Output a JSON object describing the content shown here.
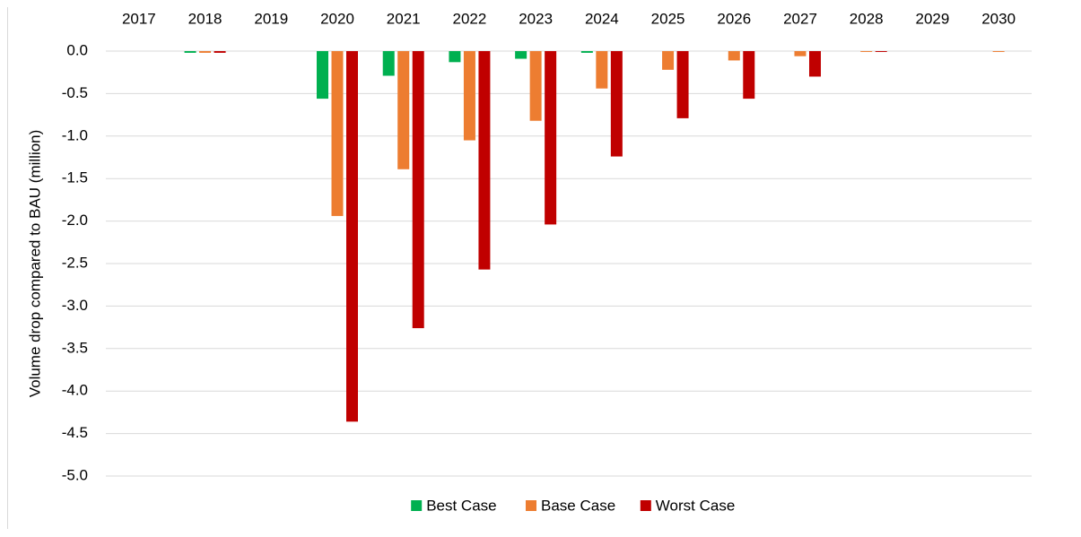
{
  "chart_data": {
    "type": "bar",
    "y_label": "Volume  drop compared to BAU (million)",
    "categories": [
      "2017",
      "2018",
      "2019",
      "2020",
      "2021",
      "2022",
      "2023",
      "2024",
      "2025",
      "2026",
      "2027",
      "2028",
      "2029",
      "2030"
    ],
    "series": [
      {
        "name": "Best Case",
        "color": "#00b050",
        "values": [
          0,
          -0.02,
          0,
          -0.56,
          -0.29,
          -0.13,
          -0.09,
          -0.02,
          0,
          0,
          0,
          0,
          0,
          0
        ]
      },
      {
        "name": "Base Case",
        "color": "#ed7d31",
        "values": [
          0,
          -0.02,
          0,
          -1.94,
          -1.39,
          -1.05,
          -0.82,
          -0.44,
          -0.22,
          -0.11,
          -0.06,
          -0.01,
          0,
          -0.01
        ]
      },
      {
        "name": "Worst Case",
        "color": "#c00000",
        "values": [
          0,
          -0.02,
          0,
          -4.36,
          -3.26,
          -2.57,
          -2.04,
          -1.24,
          -0.79,
          -0.56,
          -0.3,
          -0.01,
          0,
          0
        ]
      }
    ],
    "ylim": [
      -5,
      0
    ],
    "yticks": [
      {
        "value": 0,
        "label": "0.0"
      },
      -0.5,
      {
        "value": -1,
        "label": "-1.0"
      },
      -1.5,
      {
        "value": -2,
        "label": "-2.0"
      },
      -2.5,
      {
        "value": -3,
        "label": "-3.0"
      },
      -3.5,
      {
        "value": -4,
        "label": "-4.0"
      },
      -4.5,
      {
        "value": -5,
        "label": "-5.0"
      }
    ],
    "grid": true,
    "legend": "bottom"
  }
}
